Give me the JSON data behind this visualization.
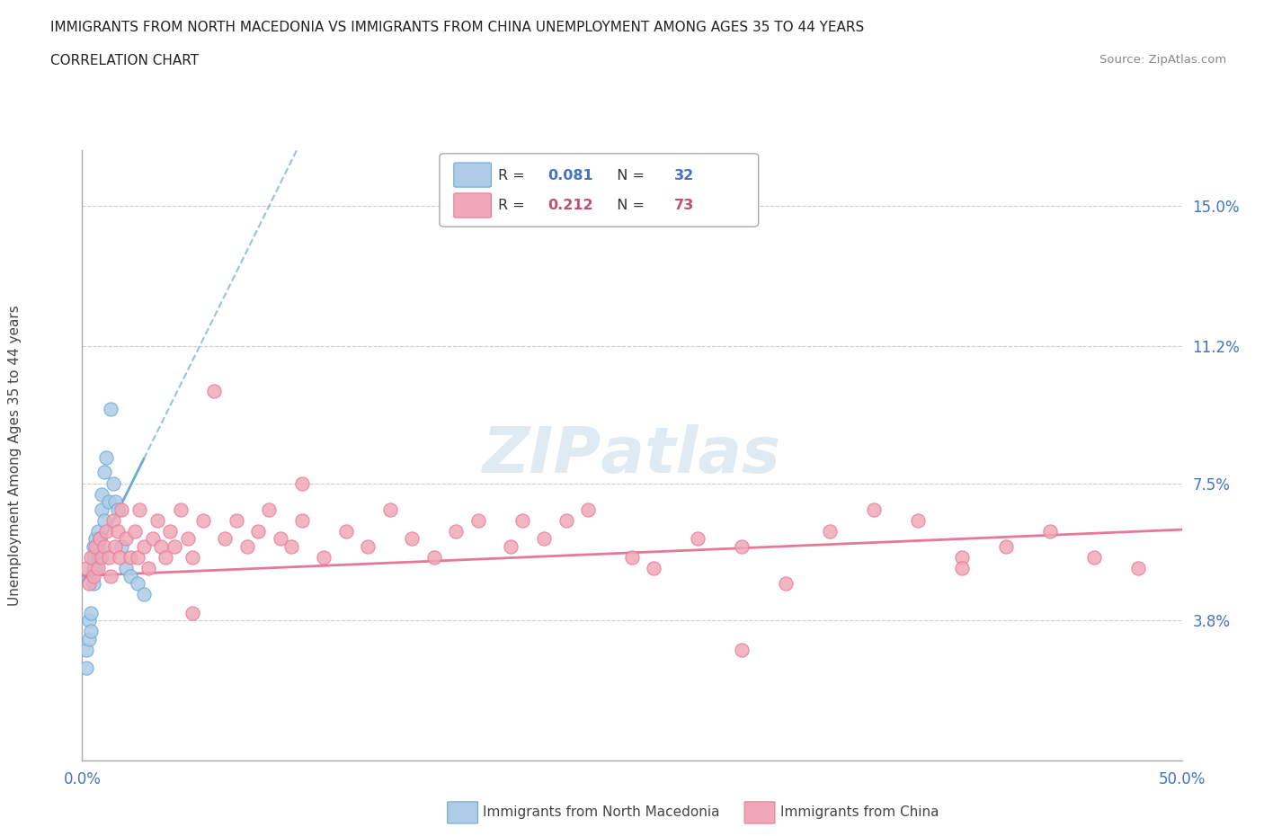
{
  "title_line1": "IMMIGRANTS FROM NORTH MACEDONIA VS IMMIGRANTS FROM CHINA UNEMPLOYMENT AMONG AGES 35 TO 44 YEARS",
  "title_line2": "CORRELATION CHART",
  "source_text": "Source: ZipAtlas.com",
  "ylabel": "Unemployment Among Ages 35 to 44 years",
  "xlim": [
    0.0,
    0.5
  ],
  "ylim": [
    0.0,
    0.165
  ],
  "xticks": [
    0.0,
    0.05,
    0.1,
    0.15,
    0.2,
    0.25,
    0.3,
    0.35,
    0.4,
    0.45,
    0.5
  ],
  "ytick_positions": [
    0.038,
    0.075,
    0.112,
    0.15
  ],
  "ytick_labels": [
    "3.8%",
    "7.5%",
    "11.2%",
    "15.0%"
  ],
  "color_macedonia": "#aecce8",
  "color_china": "#f0a8b8",
  "color_macedonia_edge": "#6aaad4",
  "color_china_edge": "#e87898",
  "color_macedonia_line": "#6aaad4",
  "color_china_line": "#e87898",
  "color_r1": "#4472c4",
  "color_r2": "#c05070",
  "watermark_color": "#ccdcec",
  "macedonia_x": [
    0.002,
    0.002,
    0.003,
    0.003,
    0.004,
    0.004,
    0.005,
    0.005,
    0.005,
    0.005,
    0.006,
    0.006,
    0.007,
    0.007,
    0.007,
    0.008,
    0.008,
    0.009,
    0.009,
    0.01,
    0.01,
    0.011,
    0.012,
    0.013,
    0.014,
    0.015,
    0.016,
    0.018,
    0.02,
    0.022,
    0.025,
    0.028
  ],
  "macedonia_y": [
    0.03,
    0.025,
    0.038,
    0.033,
    0.035,
    0.04,
    0.052,
    0.048,
    0.055,
    0.058,
    0.052,
    0.06,
    0.055,
    0.058,
    0.062,
    0.06,
    0.055,
    0.068,
    0.072,
    0.065,
    0.078,
    0.082,
    0.07,
    0.095,
    0.075,
    0.07,
    0.068,
    0.058,
    0.052,
    0.05,
    0.048,
    0.045
  ],
  "china_x": [
    0.002,
    0.003,
    0.004,
    0.005,
    0.006,
    0.007,
    0.008,
    0.009,
    0.01,
    0.011,
    0.012,
    0.013,
    0.014,
    0.015,
    0.016,
    0.017,
    0.018,
    0.02,
    0.022,
    0.024,
    0.025,
    0.026,
    0.028,
    0.03,
    0.032,
    0.034,
    0.036,
    0.038,
    0.04,
    0.042,
    0.045,
    0.048,
    0.05,
    0.055,
    0.06,
    0.065,
    0.07,
    0.075,
    0.08,
    0.085,
    0.09,
    0.095,
    0.1,
    0.11,
    0.12,
    0.13,
    0.14,
    0.15,
    0.16,
    0.17,
    0.18,
    0.195,
    0.21,
    0.22,
    0.23,
    0.25,
    0.26,
    0.28,
    0.3,
    0.32,
    0.34,
    0.36,
    0.38,
    0.4,
    0.42,
    0.44,
    0.46,
    0.48,
    0.1,
    0.2,
    0.3,
    0.4,
    0.05
  ],
  "china_y": [
    0.052,
    0.048,
    0.055,
    0.05,
    0.058,
    0.052,
    0.06,
    0.055,
    0.058,
    0.062,
    0.055,
    0.05,
    0.065,
    0.058,
    0.062,
    0.055,
    0.068,
    0.06,
    0.055,
    0.062,
    0.055,
    0.068,
    0.058,
    0.052,
    0.06,
    0.065,
    0.058,
    0.055,
    0.062,
    0.058,
    0.068,
    0.06,
    0.055,
    0.065,
    0.1,
    0.06,
    0.065,
    0.058,
    0.062,
    0.068,
    0.06,
    0.058,
    0.065,
    0.055,
    0.062,
    0.058,
    0.068,
    0.06,
    0.055,
    0.062,
    0.065,
    0.058,
    0.06,
    0.065,
    0.068,
    0.055,
    0.052,
    0.06,
    0.058,
    0.048,
    0.062,
    0.068,
    0.065,
    0.055,
    0.058,
    0.062,
    0.055,
    0.052,
    0.075,
    0.065,
    0.03,
    0.052,
    0.04
  ],
  "mac_trend_slope": 1.2,
  "mac_trend_intercept": 0.048,
  "chi_trend_slope": 0.025,
  "chi_trend_intercept": 0.05
}
